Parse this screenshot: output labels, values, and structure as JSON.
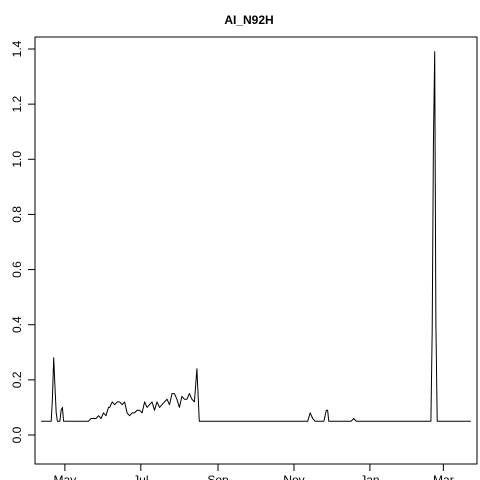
{
  "chart_data": {
    "type": "line",
    "title": "AI_N92H",
    "xlabel": "",
    "ylabel": "",
    "x_ticks": [
      "May",
      "Jul",
      "Sep",
      "Nov",
      "Jan",
      "Mar"
    ],
    "x_tick_dates": [
      "2012-05-01",
      "2012-07-01",
      "2012-09-01",
      "2012-11-01",
      "2013-01-01",
      "2013-03-01"
    ],
    "xlim": [
      "2012-04-07",
      "2013-03-28"
    ],
    "ylim": [
      0,
      1.45
    ],
    "y_ticks": [
      0.0,
      0.2,
      0.4,
      0.6,
      0.8,
      1.0,
      1.2,
      1.4
    ],
    "grid": false,
    "line_color": "#000000",
    "series": [
      {
        "x": [
          "2012-04-12",
          "2012-04-20",
          "2012-04-21",
          "2012-04-22",
          "2012-04-23",
          "2012-04-24",
          "2012-04-25",
          "2012-04-27",
          "2012-04-28",
          "2012-04-29",
          "2012-04-30",
          "2012-05-01",
          "2012-05-15",
          "2012-05-18",
          "2012-05-20",
          "2012-05-22",
          "2012-05-24",
          "2012-05-26",
          "2012-05-28",
          "2012-05-30",
          "2012-06-01",
          "2012-06-03",
          "2012-06-05",
          "2012-06-06",
          "2012-06-08",
          "2012-06-10",
          "2012-06-12",
          "2012-06-14",
          "2012-06-16",
          "2012-06-18",
          "2012-06-20",
          "2012-06-22",
          "2012-06-24",
          "2012-06-26",
          "2012-06-28",
          "2012-06-30",
          "2012-07-02",
          "2012-07-04",
          "2012-07-06",
          "2012-07-08",
          "2012-07-10",
          "2012-07-12",
          "2012-07-14",
          "2012-07-16",
          "2012-07-18",
          "2012-07-20",
          "2012-07-22",
          "2012-07-24",
          "2012-07-26",
          "2012-07-28",
          "2012-07-30",
          "2012-08-01",
          "2012-08-03",
          "2012-08-05",
          "2012-08-07",
          "2012-08-09",
          "2012-08-11",
          "2012-08-13",
          "2012-08-15",
          "2012-08-17",
          "2012-08-19",
          "2012-08-21",
          "2012-08-23",
          "2012-08-25",
          "2012-08-27",
          "2012-08-28",
          "2012-08-29",
          "2012-08-30",
          "2012-11-12",
          "2012-11-14",
          "2012-11-16",
          "2012-11-18",
          "2012-11-25",
          "2012-11-27",
          "2012-11-28",
          "2012-11-29",
          "2012-11-30",
          "2012-12-17",
          "2012-12-19",
          "2012-12-21",
          "2013-02-19",
          "2013-02-20",
          "2013-02-21",
          "2013-02-22",
          "2013-02-23",
          "2013-02-24",
          "2013-03-23"
        ],
        "y": [
          0.05,
          0.05,
          0.13,
          0.28,
          0.18,
          0.08,
          0.05,
          0.05,
          0.09,
          0.1,
          0.05,
          0.05,
          0.05,
          0.05,
          0.05,
          0.06,
          0.06,
          0.06,
          0.07,
          0.06,
          0.08,
          0.07,
          0.1,
          0.1,
          0.12,
          0.11,
          0.12,
          0.12,
          0.11,
          0.12,
          0.08,
          0.07,
          0.08,
          0.08,
          0.09,
          0.09,
          0.08,
          0.12,
          0.1,
          0.11,
          0.12,
          0.09,
          0.12,
          0.1,
          0.11,
          0.12,
          0.13,
          0.11,
          0.15,
          0.15,
          0.13,
          0.1,
          0.14,
          0.13,
          0.13,
          0.15,
          0.13,
          0.12,
          0.24,
          0.05,
          0.05,
          0.05,
          0.05,
          0.05,
          0.05,
          0.05,
          0.05,
          0.05,
          0.05,
          0.08,
          0.06,
          0.05,
          0.05,
          0.09,
          0.09,
          0.05,
          0.05,
          0.05,
          0.06,
          0.05,
          0.05,
          0.38,
          1.05,
          1.39,
          0.4,
          0.05,
          0.05
        ]
      }
    ]
  }
}
